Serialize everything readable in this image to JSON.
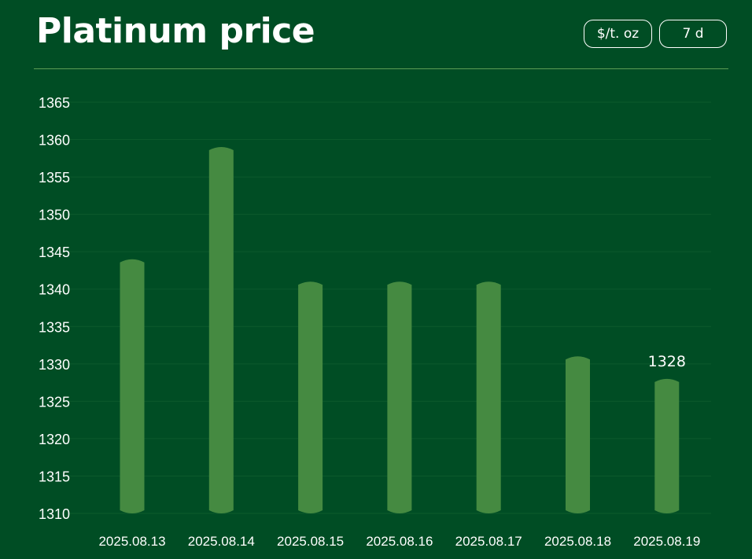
{
  "header": {
    "title": "Platinum price",
    "unit_label": "$/t. oz",
    "range_label": "7 d"
  },
  "colors": {
    "background": "#004d24",
    "bar": "#458a41",
    "grid": "#0c5a2c",
    "text": "#ffffff"
  },
  "chart_data": {
    "type": "bar",
    "title": "Platinum price",
    "xlabel": "",
    "ylabel": "",
    "categories": [
      "2025.08.13",
      "2025.08.14",
      "2025.08.15",
      "2025.08.16",
      "2025.08.17",
      "2025.08.18",
      "2025.08.19"
    ],
    "values": [
      1344,
      1359,
      1341,
      1341,
      1341,
      1331,
      1328
    ],
    "ylim": [
      1310,
      1365
    ],
    "yticks": [
      1310,
      1315,
      1320,
      1325,
      1330,
      1335,
      1340,
      1345,
      1350,
      1355,
      1360,
      1365
    ],
    "data_labels": [
      {
        "index": 6,
        "text": "1328"
      }
    ],
    "grid": true,
    "legend": "none"
  }
}
